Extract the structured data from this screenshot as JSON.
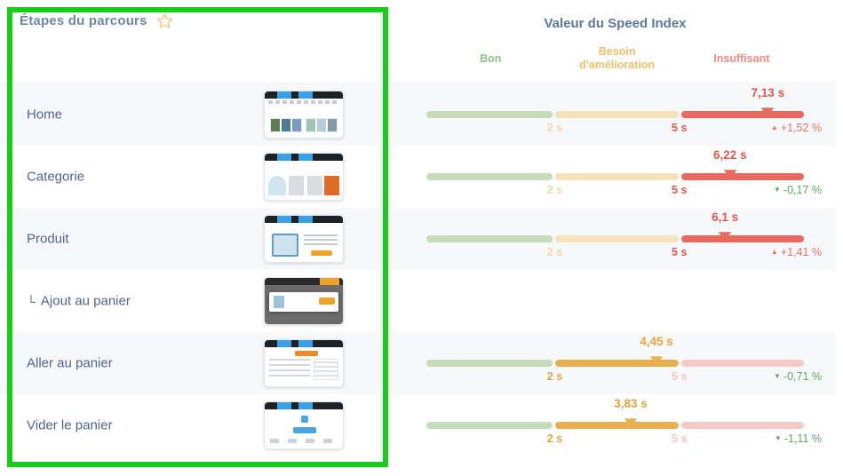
{
  "steps_header": {
    "title": "Étapes du parcours"
  },
  "speed_header": {
    "title": "Valeur du Speed Index",
    "zones": [
      {
        "label": "Bon",
        "color": "#93c08b"
      },
      {
        "label": "Besoin\nd'amélioration",
        "color": "#eec06a"
      },
      {
        "label": "Insuffisant",
        "color": "#f08b84"
      }
    ]
  },
  "scale": {
    "boundary1": 2,
    "boundary1_label": "2 s",
    "boundary2": 5,
    "boundary2_label": "5 s",
    "max": 8
  },
  "icons": {
    "up_arrow": "▲",
    "down_arrow": "▼",
    "star": "star-outline"
  },
  "colors": {
    "good_pale": "#c6dcba",
    "mid_strong": "#eaaf50",
    "mid_pale": "#f5e2ba",
    "bad_strong": "#ea685f",
    "bad_pale": "#f5cac6",
    "change_up": "#e4736c",
    "change_down": "#62a566",
    "annotation_green": "#17cd17"
  },
  "rows": [
    {
      "label": "Home",
      "connector": "",
      "thumbnail": "home",
      "gauge": {
        "value_label": "7,13 s",
        "value_seconds": 7.13,
        "zone": "red",
        "change_label": "+1,52 %",
        "change_direction": "up"
      }
    },
    {
      "label": "Categorie",
      "connector": "",
      "thumbnail": "categorie",
      "gauge": {
        "value_label": "6,22 s",
        "value_seconds": 6.22,
        "zone": "red",
        "change_label": "-0,17 %",
        "change_direction": "down"
      }
    },
    {
      "label": "Produit",
      "connector": "",
      "thumbnail": "produit",
      "gauge": {
        "value_label": "6,1 s",
        "value_seconds": 6.1,
        "zone": "red",
        "change_label": "+1,41 %",
        "change_direction": "up"
      }
    },
    {
      "label": "Ajout au panier",
      "connector": "└",
      "thumbnail": "ajout",
      "gauge": null
    },
    {
      "label": "Aller au panier",
      "connector": "",
      "thumbnail": "aller",
      "gauge": {
        "value_label": "4,45 s",
        "value_seconds": 4.45,
        "zone": "orange",
        "change_label": "-0,71 %",
        "change_direction": "down"
      }
    },
    {
      "label": "Vider le panier",
      "connector": "",
      "thumbnail": "vider",
      "gauge": {
        "value_label": "3,83 s",
        "value_seconds": 3.83,
        "zone": "orange",
        "change_label": "-1,11 %",
        "change_direction": "down"
      }
    }
  ]
}
